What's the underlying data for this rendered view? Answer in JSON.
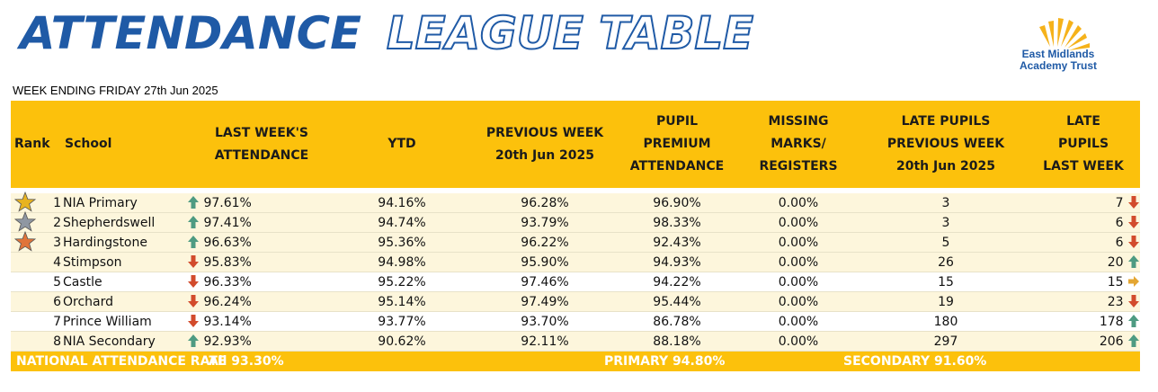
{
  "header": {
    "title_part1": "ATTENDANCE",
    "title_part2": "LEAGUE TABLE",
    "logo_line1": "East Midlands",
    "logo_line2": "Academy Trust",
    "week_ending": "WEEK ENDING FRIDAY 27th Jun 2025"
  },
  "columns": {
    "rank": "Rank",
    "school": "School",
    "last_week_1": "LAST WEEK'S",
    "last_week_2": "ATTENDANCE",
    "ytd": "YTD",
    "prev_1": "PREVIOUS WEEK",
    "prev_2": "20th Jun 2025",
    "pp_1": "PUPIL",
    "pp_2": "PREMIUM",
    "pp_3": "ATTENDANCE",
    "mm_1": "MISSING",
    "mm_2": "MARKS/",
    "mm_3": "REGISTERS",
    "lpp_1": "LATE PUPILS",
    "lpp_2": "PREVIOUS WEEK",
    "lpp_3": "20th Jun 2025",
    "lpl_1": "LATE",
    "lpl_2": "PUPILS",
    "lpl_3": "LAST WEEK"
  },
  "rows": [
    {
      "rank": "1",
      "school": "NIA Primary",
      "star": "gold-star",
      "att_trend": "up",
      "attendance": "97.61%",
      "ytd": "94.16%",
      "previous_week": "96.28%",
      "pupil_premium": "96.90%",
      "missing_marks": "0.00%",
      "late_prev": "3",
      "late_last": "7",
      "late_trend": "down"
    },
    {
      "rank": "2",
      "school": "Shepherdswell",
      "star": "silver-star",
      "att_trend": "up",
      "attendance": "97.41%",
      "ytd": "94.74%",
      "previous_week": "93.79%",
      "pupil_premium": "98.33%",
      "missing_marks": "0.00%",
      "late_prev": "3",
      "late_last": "6",
      "late_trend": "down"
    },
    {
      "rank": "3",
      "school": "Hardingstone",
      "star": "bronze-star",
      "att_trend": "up",
      "attendance": "96.63%",
      "ytd": "95.36%",
      "previous_week": "96.22%",
      "pupil_premium": "92.43%",
      "missing_marks": "0.00%",
      "late_prev": "5",
      "late_last": "6",
      "late_trend": "down"
    },
    {
      "rank": "4",
      "school": "Stimpson",
      "star": "",
      "att_trend": "down",
      "attendance": "95.83%",
      "ytd": "94.98%",
      "previous_week": "95.90%",
      "pupil_premium": "94.93%",
      "missing_marks": "0.00%",
      "late_prev": "26",
      "late_last": "20",
      "late_trend": "up"
    },
    {
      "rank": "5",
      "school": "Castle",
      "star": "",
      "att_trend": "down",
      "attendance": "96.33%",
      "ytd": "95.22%",
      "previous_week": "97.46%",
      "pupil_premium": "94.22%",
      "missing_marks": "0.00%",
      "late_prev": "15",
      "late_last": "15",
      "late_trend": "right"
    },
    {
      "rank": "6",
      "school": "Orchard",
      "star": "",
      "att_trend": "down",
      "attendance": "96.24%",
      "ytd": "95.14%",
      "previous_week": "97.49%",
      "pupil_premium": "95.44%",
      "missing_marks": "0.00%",
      "late_prev": "19",
      "late_last": "23",
      "late_trend": "down"
    },
    {
      "rank": "7",
      "school": "Prince William",
      "star": "",
      "att_trend": "down",
      "attendance": "93.14%",
      "ytd": "93.77%",
      "previous_week": "93.70%",
      "pupil_premium": "86.78%",
      "missing_marks": "0.00%",
      "late_prev": "180",
      "late_last": "178",
      "late_trend": "up"
    },
    {
      "rank": "8",
      "school": "NIA Secondary",
      "star": "",
      "att_trend": "up",
      "attendance": "92.93%",
      "ytd": "90.62%",
      "previous_week": "92.11%",
      "pupil_premium": "88.18%",
      "missing_marks": "0.00%",
      "late_prev": "297",
      "late_last": "206",
      "late_trend": "up"
    }
  ],
  "national": {
    "label": "NATIONAL ATTENDANCE RATE",
    "all": "All 93.30%",
    "primary": "PRIMARY 94.80%",
    "secondary": "SECONDARY 91.60%"
  },
  "colors": {
    "header_yellow": "#fcc10c",
    "title_blue": "#1f5aa6",
    "arrow_up": "#4e9b82",
    "arrow_down": "#d24b2c",
    "arrow_right": "#e4a632",
    "gold-star": "#e8b320",
    "silver-star": "#8f97a2",
    "bronze-star": "#e0743a"
  }
}
